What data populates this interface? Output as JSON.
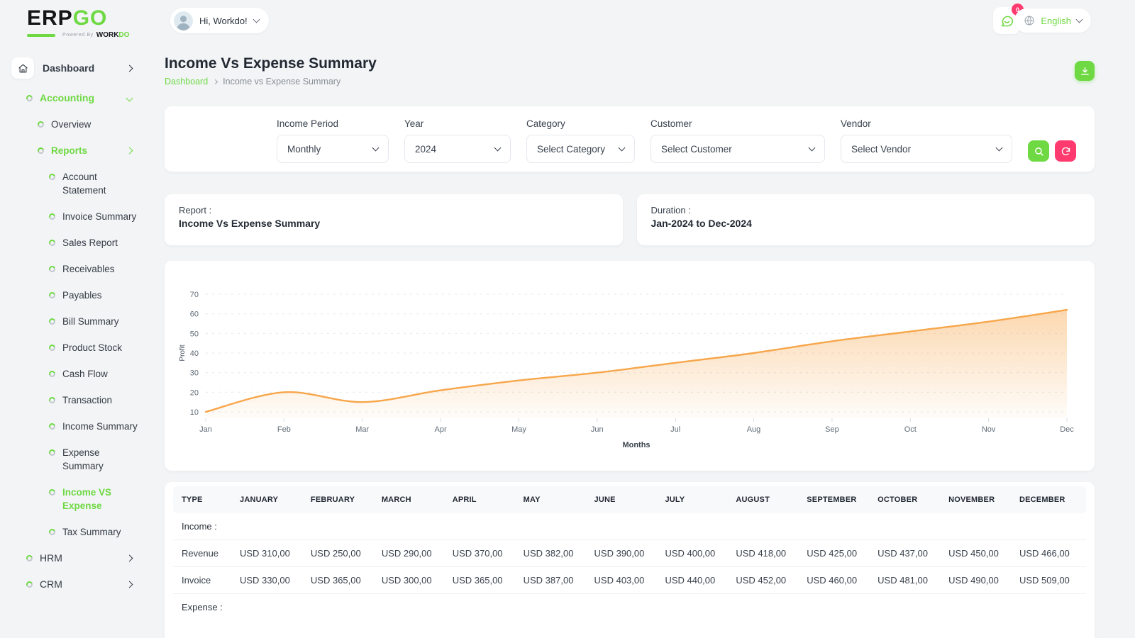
{
  "colors": {
    "accent_green": "#6FD943",
    "danger_pink": "#FF3A6E",
    "chart_orange": "#F7A64B",
    "page_background": "#F2F4F6"
  },
  "brand": {
    "logo_erp": "ERP",
    "logo_go": "GO",
    "powered_by": "Powered By",
    "workdo_work": "WORK",
    "workdo_do": "DO"
  },
  "header": {
    "greeting": "Hi, Workdo!",
    "notification_count": "0",
    "language": "English"
  },
  "sidebar": {
    "items": [
      {
        "label": "Dashboard",
        "icon": "home",
        "level": 0,
        "chevron": "right",
        "active": false
      },
      {
        "label": "Accounting",
        "icon": "dot",
        "level": 1,
        "chevron": "down",
        "active": true
      },
      {
        "label": "Overview",
        "icon": "dot",
        "level": 2,
        "chevron": null,
        "active": false
      },
      {
        "label": "Reports",
        "icon": "dot",
        "level": 2,
        "chevron": "right",
        "active": true
      },
      {
        "label": "Account Statement",
        "icon": "dot",
        "level": 3,
        "chevron": null,
        "active": false
      },
      {
        "label": "Invoice Summary",
        "icon": "dot",
        "level": 3,
        "chevron": null,
        "active": false
      },
      {
        "label": "Sales Report",
        "icon": "dot",
        "level": 3,
        "chevron": null,
        "active": false
      },
      {
        "label": "Receivables",
        "icon": "dot",
        "level": 3,
        "chevron": null,
        "active": false
      },
      {
        "label": "Payables",
        "icon": "dot",
        "level": 3,
        "chevron": null,
        "active": false
      },
      {
        "label": "Bill Summary",
        "icon": "dot",
        "level": 3,
        "chevron": null,
        "active": false
      },
      {
        "label": "Product Stock",
        "icon": "dot",
        "level": 3,
        "chevron": null,
        "active": false
      },
      {
        "label": "Cash Flow",
        "icon": "dot",
        "level": 3,
        "chevron": null,
        "active": false
      },
      {
        "label": "Transaction",
        "icon": "dot",
        "level": 3,
        "chevron": null,
        "active": false
      },
      {
        "label": "Income Summary",
        "icon": "dot",
        "level": 3,
        "chevron": null,
        "active": false
      },
      {
        "label": "Expense Summary",
        "icon": "dot",
        "level": 3,
        "chevron": null,
        "active": false
      },
      {
        "label": "Income VS Expense",
        "icon": "dot",
        "level": 3,
        "chevron": null,
        "active": true
      },
      {
        "label": "Tax Summary",
        "icon": "dot",
        "level": 3,
        "chevron": null,
        "active": false
      },
      {
        "label": "HRM",
        "icon": "dot",
        "level": 1,
        "chevron": "right",
        "active": false
      },
      {
        "label": "CRM",
        "icon": "dot",
        "level": 1,
        "chevron": "right",
        "active": false
      }
    ]
  },
  "page": {
    "title": "Income Vs Expense Summary",
    "breadcrumb_home": "Dashboard",
    "breadcrumb_current": "Income vs Expense Summary"
  },
  "filters": {
    "fields": [
      {
        "name": "income-period",
        "label": "Income Period",
        "value": "Monthly"
      },
      {
        "name": "year",
        "label": "Year",
        "value": "2024"
      },
      {
        "name": "category",
        "label": "Category",
        "value": "Select Category"
      },
      {
        "name": "customer",
        "label": "Customer",
        "value": "Select Customer"
      },
      {
        "name": "vendor",
        "label": "Vendor",
        "value": "Select Vendor"
      }
    ]
  },
  "summary_cards": [
    {
      "label": "Report :",
      "value": "Income Vs Expense Summary"
    },
    {
      "label": "Duration :",
      "value": "Jan-2024 to Dec-2024"
    }
  ],
  "chart_data": {
    "type": "area",
    "x": [
      "Jan",
      "Feb",
      "Mar",
      "Apr",
      "May",
      "Jun",
      "Jul",
      "Aug",
      "Sep",
      "Oct",
      "Nov",
      "Dec"
    ],
    "series": [
      {
        "name": "Profit",
        "values": [
          10,
          20,
          15,
          21,
          26,
          30,
          35,
          40,
          46,
          51,
          56,
          62
        ]
      }
    ],
    "xlabel": "Months",
    "ylabel": "Profit",
    "ylim": [
      10,
      70
    ],
    "yticks": [
      10,
      20,
      30,
      40,
      50,
      60,
      70
    ],
    "grid": "dashed-horizontal",
    "legend": "none",
    "line_color": "#F7A64B",
    "fill": "vertical-gradient-orange"
  },
  "table": {
    "columns": [
      "TYPE",
      "JANUARY",
      "FEBRUARY",
      "MARCH",
      "APRIL",
      "MAY",
      "JUNE",
      "JULY",
      "AUGUST",
      "SEPTEMBER",
      "OCTOBER",
      "NOVEMBER",
      "DECEMBER"
    ],
    "sections": [
      {
        "label": "Income :",
        "rows": [
          {
            "type": "Revenue",
            "values": [
              "USD 310,00",
              "USD 250,00",
              "USD 290,00",
              "USD 370,00",
              "USD 382,00",
              "USD 390,00",
              "USD 400,00",
              "USD 418,00",
              "USD 425,00",
              "USD 437,00",
              "USD 450,00",
              "USD 466,00"
            ]
          },
          {
            "type": "Invoice",
            "values": [
              "USD 330,00",
              "USD 365,00",
              "USD 300,00",
              "USD 365,00",
              "USD 387,00",
              "USD 403,00",
              "USD 440,00",
              "USD 452,00",
              "USD 460,00",
              "USD 481,00",
              "USD 490,00",
              "USD 509,00"
            ]
          }
        ]
      },
      {
        "label": "Expense :",
        "rows": []
      }
    ]
  }
}
